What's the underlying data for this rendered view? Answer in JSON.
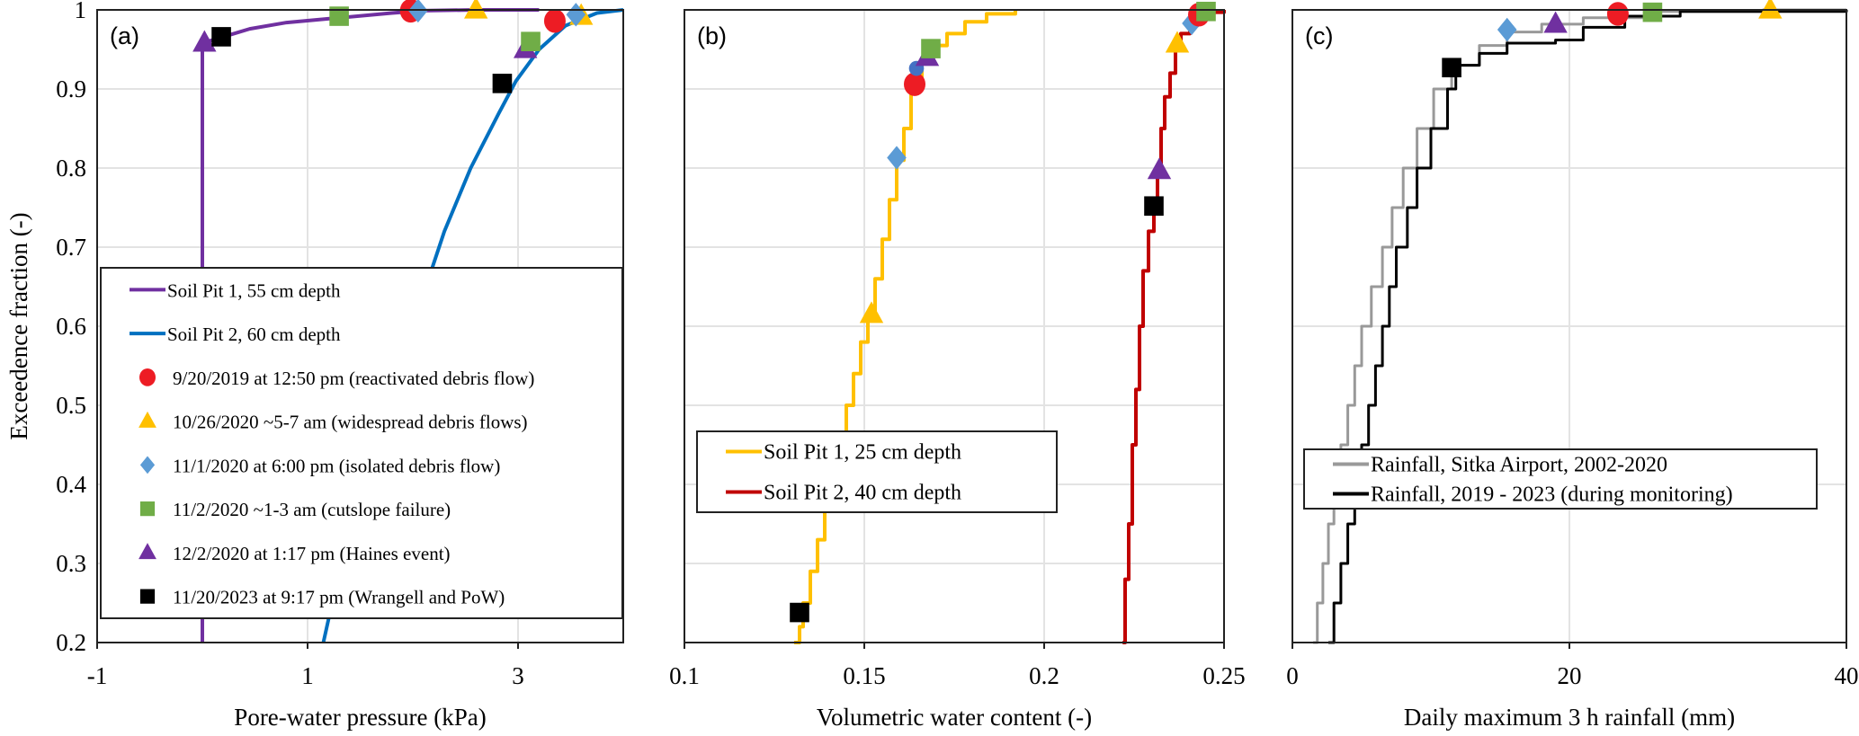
{
  "figure": {
    "ylabel": "Exceedence fraction (-)"
  },
  "chart_data": [
    {
      "type": "line",
      "panel_label": "(a)",
      "xlabel": "Pore-water pressure (kPa)",
      "ylabel": "Exceedence fraction (-)",
      "xlim": [
        -1,
        4
      ],
      "ylim": [
        0.2,
        1
      ],
      "xticks": [
        -1,
        1,
        3
      ],
      "xtick_labels": [
        "-1",
        "1",
        "3"
      ],
      "yticks": [
        0.2,
        0.3,
        0.4,
        0.5,
        0.6,
        0.7,
        0.8,
        0.9,
        1
      ],
      "ytick_labels": [
        "0.2",
        "0.3",
        "0.4",
        "0.5",
        "0.6",
        "0.7",
        "0.8",
        "0.9",
        "1"
      ],
      "xgrid": [
        1,
        3
      ],
      "ygrid": [
        0.3,
        0.4,
        0.5,
        0.6,
        0.7,
        0.8,
        0.9
      ],
      "grid": true,
      "legend_position": "center-left",
      "series": [
        {
          "name": "Soil Pit 1, 55 cm depth",
          "color": "#7030a0",
          "points": [
            [
              0,
              0.2
            ],
            [
              0,
              0.958
            ],
            [
              0.1,
              0.962
            ],
            [
              0.2,
              0.966
            ],
            [
              0.45,
              0.976
            ],
            [
              0.8,
              0.984
            ],
            [
              1.3,
              0.99
            ],
            [
              1.8,
              0.996
            ],
            [
              2.1,
              0.999
            ],
            [
              2.6,
              1.0
            ],
            [
              3.2,
              1.0
            ]
          ]
        },
        {
          "name": "Soil Pit 2, 60 cm depth",
          "color": "#0070c0",
          "points": [
            [
              1.15,
              0.2
            ],
            [
              1.4,
              0.35
            ],
            [
              1.7,
              0.5
            ],
            [
              2.05,
              0.62
            ],
            [
              2.3,
              0.72
            ],
            [
              2.55,
              0.8
            ],
            [
              2.82,
              0.87
            ],
            [
              2.98,
              0.91
            ],
            [
              3.2,
              0.95
            ],
            [
              3.45,
              0.98
            ],
            [
              3.75,
              0.996
            ],
            [
              4.0,
              1.0
            ]
          ]
        }
      ],
      "markers": [
        {
          "event": 5,
          "x": 0.02,
          "y": 0.958
        },
        {
          "event": 6,
          "x": 0.18,
          "y": 0.966
        },
        {
          "event": 4,
          "x": 1.3,
          "y": 0.992
        },
        {
          "event": 1,
          "x": 1.98,
          "y": 0.999
        },
        {
          "event": 3,
          "x": 2.05,
          "y": 0.999
        },
        {
          "event": 2,
          "x": 2.6,
          "y": 1.0
        },
        {
          "event": 6,
          "x": 2.85,
          "y": 0.907
        },
        {
          "event": 5,
          "x": 3.07,
          "y": 0.95
        },
        {
          "event": 4,
          "x": 3.12,
          "y": 0.96
        },
        {
          "event": 1,
          "x": 3.35,
          "y": 0.986
        },
        {
          "event": 2,
          "x": 3.6,
          "y": 0.992
        },
        {
          "event": 3,
          "x": 3.55,
          "y": 0.994
        }
      ],
      "legend": [
        {
          "kind": "line",
          "label": "Soil Pit 1, 55 cm depth",
          "color": "#7030a0"
        },
        {
          "kind": "line",
          "label": "Soil Pit 2, 60 cm depth",
          "color": "#0070c0"
        },
        {
          "kind": "marker",
          "event": 1,
          "label": "9/20/2019  at 12:50 pm (reactivated debris flow)"
        },
        {
          "kind": "marker",
          "event": 2,
          "label": "10/26/2020  ~5-7 am (widespread debris flows)"
        },
        {
          "kind": "marker",
          "event": 3,
          "label": "11/1/2020  at 6:00 pm (isolated debris flow)"
        },
        {
          "kind": "marker",
          "event": 4,
          "label": "11/2/2020  ~1-3 am (cutslope failure)"
        },
        {
          "kind": "marker",
          "event": 5,
          "label": "12/2/2020 at 1:17 pm (Haines event)"
        },
        {
          "kind": "marker",
          "event": 6,
          "label": "11/20/2023 at 9:17 pm (Wrangell and PoW)"
        }
      ]
    },
    {
      "type": "line",
      "panel_label": "(b)",
      "xlabel": "Volumetric water content (-)",
      "xlim": [
        0.1,
        0.25
      ],
      "ylim": [
        0.2,
        1
      ],
      "xticks": [
        0.1,
        0.15,
        0.2,
        0.25
      ],
      "xtick_labels": [
        "0.1",
        "0.15",
        "0.2",
        "0.25"
      ],
      "xgrid": [
        0.15,
        0.2
      ],
      "ygrid": [
        0.3,
        0.4,
        0.5,
        0.6,
        0.7,
        0.8,
        0.9
      ],
      "grid": true,
      "legend_position": "center-left",
      "series": [
        {
          "name": "Soil Pit 1, 25 cm depth",
          "color": "#ffc000",
          "step": true,
          "points": [
            [
              0.1305,
              0.2
            ],
            [
              0.132,
              0.22
            ],
            [
              0.133,
              0.25
            ],
            [
              0.135,
              0.29
            ],
            [
              0.137,
              0.33
            ],
            [
              0.139,
              0.37
            ],
            [
              0.141,
              0.41
            ],
            [
              0.143,
              0.45
            ],
            [
              0.145,
              0.5
            ],
            [
              0.147,
              0.54
            ],
            [
              0.149,
              0.58
            ],
            [
              0.151,
              0.61
            ],
            [
              0.153,
              0.66
            ],
            [
              0.155,
              0.71
            ],
            [
              0.157,
              0.76
            ],
            [
              0.159,
              0.81
            ],
            [
              0.161,
              0.85
            ],
            [
              0.163,
              0.9
            ],
            [
              0.166,
              0.935
            ],
            [
              0.169,
              0.955
            ],
            [
              0.173,
              0.97
            ],
            [
              0.178,
              0.985
            ],
            [
              0.184,
              0.995
            ],
            [
              0.192,
              1.0
            ]
          ]
        },
        {
          "name": "Soil Pit 2, 40 cm depth",
          "color": "#c00000",
          "step": true,
          "points": [
            [
              0.2218,
              0.2
            ],
            [
              0.2225,
              0.28
            ],
            [
              0.2235,
              0.35
            ],
            [
              0.2245,
              0.45
            ],
            [
              0.2255,
              0.52
            ],
            [
              0.2265,
              0.6
            ],
            [
              0.2275,
              0.67
            ],
            [
              0.229,
              0.72
            ],
            [
              0.2305,
              0.76
            ],
            [
              0.2315,
              0.8
            ],
            [
              0.2325,
              0.85
            ],
            [
              0.2335,
              0.89
            ],
            [
              0.235,
              0.92
            ],
            [
              0.2365,
              0.95
            ],
            [
              0.238,
              0.97
            ],
            [
              0.2405,
              0.98
            ],
            [
              0.2425,
              0.99
            ],
            [
              0.245,
              0.997
            ],
            [
              0.25,
              1.0
            ]
          ]
        }
      ],
      "markers": [
        {
          "event": 6,
          "x": 0.132,
          "y": 0.238
        },
        {
          "event": 2,
          "x": 0.152,
          "y": 0.615
        },
        {
          "event": 3,
          "x": 0.159,
          "y": 0.813
        },
        {
          "event": 1,
          "x": 0.164,
          "y": 0.906
        },
        {
          "event": 0,
          "x": 0.1645,
          "y": 0.926
        },
        {
          "event": 5,
          "x": 0.1675,
          "y": 0.94
        },
        {
          "event": 4,
          "x": 0.1685,
          "y": 0.951
        },
        {
          "event": 6,
          "x": 0.2305,
          "y": 0.752
        },
        {
          "event": 5,
          "x": 0.232,
          "y": 0.797
        },
        {
          "event": 2,
          "x": 0.237,
          "y": 0.957
        },
        {
          "event": 3,
          "x": 0.241,
          "y": 0.983
        },
        {
          "event": 1,
          "x": 0.243,
          "y": 0.994
        },
        {
          "event": 4,
          "x": 0.245,
          "y": 0.998
        }
      ],
      "legend": [
        {
          "kind": "line",
          "label": "Soil Pit 1, 25 cm depth",
          "color": "#ffc000"
        },
        {
          "kind": "line",
          "label": "Soil Pit 2, 40 cm depth",
          "color": "#c00000"
        }
      ]
    },
    {
      "type": "line",
      "panel_label": "(c)",
      "xlabel": "Daily maximum 3 h rainfall (mm)",
      "xlim": [
        0,
        40
      ],
      "ylim": [
        0.2,
        1
      ],
      "xticks": [
        0,
        20,
        40
      ],
      "xtick_labels": [
        "0",
        "20",
        "40"
      ],
      "xgrid": [
        20
      ],
      "ygrid": [
        0.4,
        0.6,
        0.8
      ],
      "grid": true,
      "legend_position": "center-left",
      "series": [
        {
          "name": "Rainfall, Sitka Airport, 2002-2020",
          "color": "#999999",
          "step": true,
          "points": [
            [
              1.5,
              0.2
            ],
            [
              1.8,
              0.25
            ],
            [
              2.2,
              0.3
            ],
            [
              2.6,
              0.35
            ],
            [
              3.0,
              0.4
            ],
            [
              3.5,
              0.45
            ],
            [
              4.0,
              0.5
            ],
            [
              4.5,
              0.55
            ],
            [
              5.0,
              0.6
            ],
            [
              5.7,
              0.65
            ],
            [
              6.5,
              0.7
            ],
            [
              7.2,
              0.75
            ],
            [
              8.0,
              0.8
            ],
            [
              9.0,
              0.85
            ],
            [
              10.2,
              0.9
            ],
            [
              11.5,
              0.93
            ],
            [
              13.5,
              0.955
            ],
            [
              15.5,
              0.972
            ],
            [
              18,
              0.982
            ],
            [
              21,
              0.99
            ],
            [
              26,
              0.998
            ],
            [
              34,
              1.0
            ],
            [
              40,
              1.0
            ]
          ]
        },
        {
          "name": "Rainfall, 2019 - 2023 (during monitoring)",
          "color": "#000000",
          "step": true,
          "points": [
            [
              2.6,
              0.2
            ],
            [
              3.0,
              0.25
            ],
            [
              3.5,
              0.3
            ],
            [
              4.0,
              0.35
            ],
            [
              4.5,
              0.4
            ],
            [
              5.0,
              0.45
            ],
            [
              5.5,
              0.5
            ],
            [
              6.0,
              0.55
            ],
            [
              6.5,
              0.6
            ],
            [
              7.0,
              0.65
            ],
            [
              7.5,
              0.7
            ],
            [
              8.3,
              0.75
            ],
            [
              9.0,
              0.8
            ],
            [
              10.0,
              0.85
            ],
            [
              11.2,
              0.9
            ],
            [
              11.8,
              0.93
            ],
            [
              13.5,
              0.945
            ],
            [
              15.5,
              0.958
            ],
            [
              19,
              0.962
            ],
            [
              21,
              0.978
            ],
            [
              24,
              0.992
            ],
            [
              28,
              0.998
            ],
            [
              40,
              1.0
            ]
          ]
        }
      ],
      "markers": [
        {
          "event": 6,
          "x": 11.5,
          "y": 0.927
        },
        {
          "event": 3,
          "x": 15.5,
          "y": 0.975
        },
        {
          "event": 5,
          "x": 19.0,
          "y": 0.982
        },
        {
          "event": 1,
          "x": 23.5,
          "y": 0.995
        },
        {
          "event": 4,
          "x": 26.0,
          "y": 0.997
        },
        {
          "event": 2,
          "x": 34.5,
          "y": 1.0
        }
      ],
      "legend": [
        {
          "kind": "line",
          "label": "Rainfall, Sitka Airport, 2002-2020",
          "color": "#999999"
        },
        {
          "kind": "line",
          "label": "Rainfall, 2019 - 2023 (during monitoring)",
          "color": "#000000"
        }
      ]
    }
  ],
  "events": {
    "0": {
      "shape": "dot",
      "color": "#4472c4"
    },
    "1": {
      "shape": "circle",
      "color": "#ed1c24"
    },
    "2": {
      "shape": "triangle",
      "color": "#ffc000"
    },
    "3": {
      "shape": "diamond",
      "color": "#5b9bd5"
    },
    "4": {
      "shape": "square",
      "color": "#70ad47"
    },
    "5": {
      "shape": "triangle",
      "color": "#7030a0"
    },
    "6": {
      "shape": "square",
      "color": "#000000"
    }
  }
}
